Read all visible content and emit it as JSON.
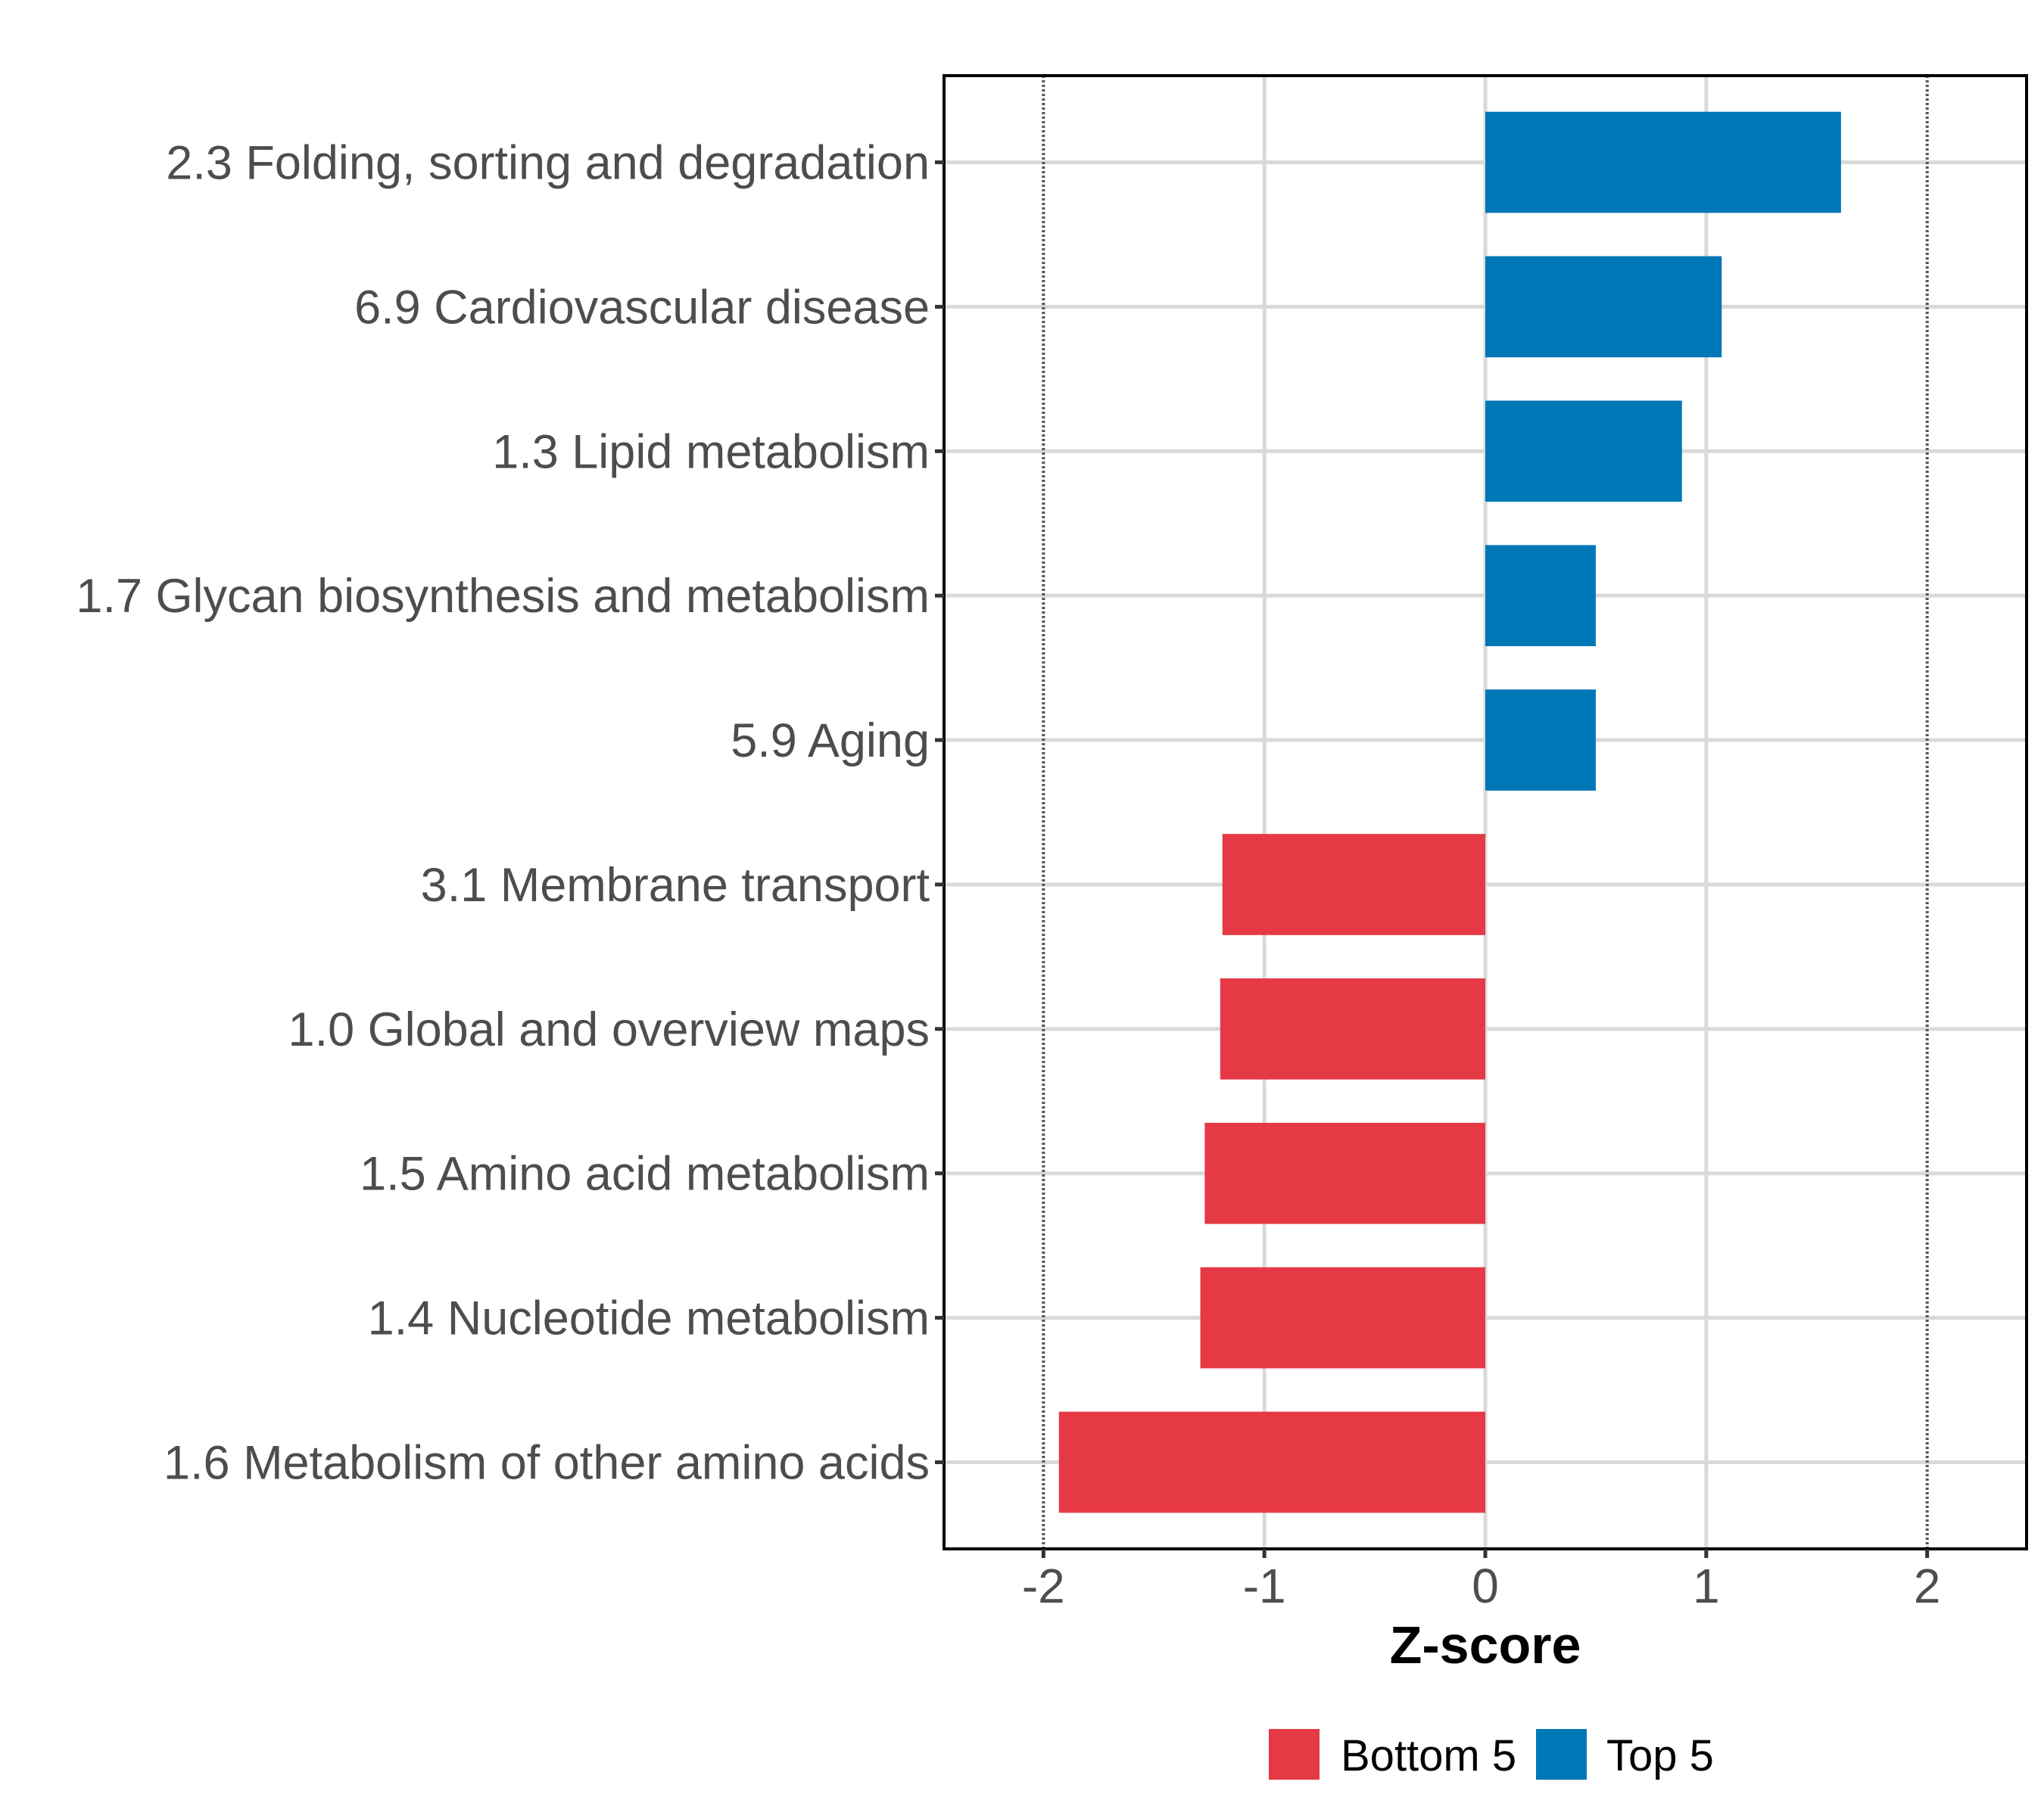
{
  "chart_data": {
    "type": "bar",
    "orientation": "horizontal",
    "title": "",
    "xlabel": "Z-score",
    "ylabel": "",
    "xlim": [
      -2.45,
      2.45
    ],
    "x_ticks": [
      -2,
      -1,
      0,
      1,
      2
    ],
    "x_tick_labels": [
      "-2",
      "-1",
      "0",
      "1",
      "2"
    ],
    "reference_lines": [
      -2,
      2
    ],
    "grid": true,
    "categories": [
      "2.3 Folding, sorting and degradation",
      "6.9 Cardiovascular disease",
      "1.3 Lipid metabolism",
      "1.7 Glycan biosynthesis and metabolism",
      "5.9 Aging",
      "3.1 Membrane transport",
      "1.0 Global and overview maps",
      "1.5 Amino acid metabolism",
      "1.4 Nucleotide metabolism",
      "1.6 Metabolism of other amino acids"
    ],
    "values": [
      1.61,
      1.07,
      0.89,
      0.5,
      0.5,
      -1.19,
      -1.2,
      -1.27,
      -1.29,
      -1.93
    ],
    "groups": [
      "Top 5",
      "Top 5",
      "Top 5",
      "Top 5",
      "Top 5",
      "Bottom 5",
      "Bottom 5",
      "Bottom 5",
      "Bottom 5",
      "Bottom 5"
    ],
    "legend": {
      "position": "bottom",
      "entries": [
        {
          "label": "Bottom 5",
          "color": "#e63946"
        },
        {
          "label": "Top 5",
          "color": "#0077b6"
        }
      ]
    },
    "colors": {
      "Bottom 5": "#e63946",
      "Top 5": "#0077b6"
    }
  }
}
